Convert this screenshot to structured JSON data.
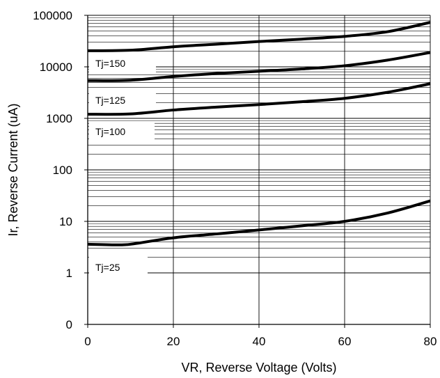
{
  "chart_data": {
    "type": "line",
    "title": "",
    "xlabel": "VR, Reverse Voltage (Volts)",
    "ylabel": "Ir, Reverse Current (uA)",
    "xlim": [
      0,
      80
    ],
    "ylim": [
      0,
      100000
    ],
    "y_scale": "log",
    "grid": true,
    "x_ticks": [
      0,
      20,
      40,
      60,
      80
    ],
    "x_tick_labels": [
      "0",
      "20",
      "40",
      "60",
      "80"
    ],
    "y_ticks": [
      0,
      1,
      10,
      100,
      1000,
      10000,
      100000
    ],
    "y_tick_labels": [
      "0",
      "1",
      "10",
      "100",
      "1000",
      "10000",
      "100000"
    ],
    "series": [
      {
        "name": "Tj=150",
        "x": [
          0,
          10,
          20,
          30,
          40,
          50,
          60,
          70,
          80
        ],
        "y": [
          20500,
          21000,
          24500,
          27500,
          31000,
          34500,
          39000,
          48000,
          73000
        ]
      },
      {
        "name": "Tj=125",
        "x": [
          0,
          10,
          20,
          30,
          40,
          50,
          60,
          70,
          80
        ],
        "y": [
          5400,
          5500,
          6500,
          7400,
          8200,
          9100,
          10500,
          13500,
          19000
        ]
      },
      {
        "name": "Tj=100",
        "x": [
          0,
          10,
          20,
          30,
          40,
          50,
          60,
          70,
          80
        ],
        "y": [
          1200,
          1220,
          1450,
          1650,
          1850,
          2100,
          2450,
          3200,
          4700
        ]
      },
      {
        "name": "Tj=25",
        "x": [
          0,
          8,
          12,
          20,
          30,
          40,
          50,
          60,
          70,
          80
        ],
        "y": [
          3.6,
          3.5,
          3.8,
          4.8,
          5.7,
          6.8,
          8.2,
          10,
          14.5,
          25
        ]
      }
    ]
  }
}
